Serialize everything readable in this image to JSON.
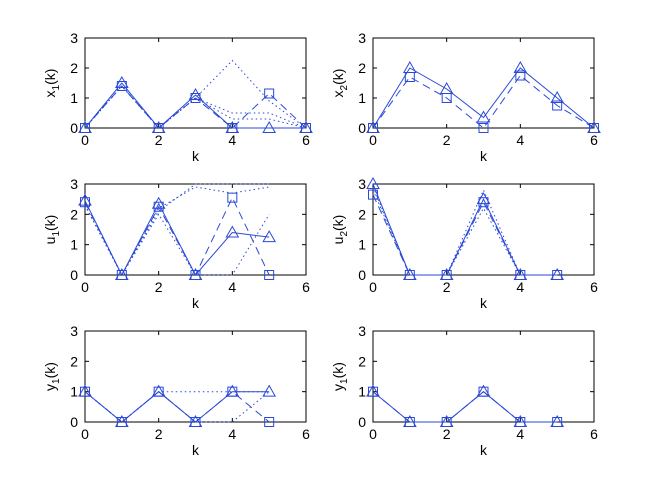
{
  "series_color": "#2a49d8",
  "chart_data": [
    {
      "type": "line",
      "xlabel": "k",
      "ylabel_main": "x",
      "ylabel_sub": "1",
      "ylabel_tail": "(k)",
      "xlim": [
        0,
        6
      ],
      "ylim": [
        0,
        3
      ],
      "xticks": [
        "0",
        "2",
        "4",
        "6"
      ],
      "yticks": [
        "0",
        "1",
        "2",
        "3"
      ],
      "series": [
        {
          "style": "solid",
          "marker": "triangle",
          "x": [
            0,
            1,
            2,
            3,
            4,
            5,
            6
          ],
          "y": [
            0,
            1.5,
            0,
            1.1,
            0,
            0,
            0
          ]
        },
        {
          "style": "dashed",
          "marker": "square",
          "x": [
            0,
            1,
            2,
            3,
            4,
            5,
            6
          ],
          "y": [
            0,
            1.4,
            0,
            1.0,
            0,
            1.15,
            0
          ]
        },
        {
          "style": "dotted",
          "marker": "none",
          "x": [
            0,
            1,
            2,
            3,
            4,
            5,
            6
          ],
          "y": [
            0,
            1.4,
            0,
            1.0,
            2.25,
            0.9,
            0
          ]
        },
        {
          "style": "dotted",
          "marker": "none",
          "x": [
            0,
            1,
            2,
            3,
            4,
            5,
            6
          ],
          "y": [
            0,
            1.4,
            0,
            1.0,
            0.5,
            0.5,
            0
          ]
        },
        {
          "style": "dotted",
          "marker": "none",
          "x": [
            0,
            1,
            2,
            3,
            4,
            5,
            6
          ],
          "y": [
            0,
            1.4,
            0,
            1.0,
            0.3,
            0.3,
            0
          ]
        }
      ]
    },
    {
      "type": "line",
      "xlabel": "k",
      "ylabel_main": "x",
      "ylabel_sub": "2",
      "ylabel_tail": "(k)",
      "xlim": [
        0,
        6
      ],
      "ylim": [
        0,
        3
      ],
      "xticks": [
        "0",
        "2",
        "4",
        "6"
      ],
      "yticks": [
        "0",
        "1",
        "2",
        "3"
      ],
      "series": [
        {
          "style": "solid",
          "marker": "triangle",
          "x": [
            0,
            1,
            2,
            3,
            4,
            5,
            6
          ],
          "y": [
            0,
            2.0,
            1.3,
            0.35,
            2.0,
            1.0,
            0
          ]
        },
        {
          "style": "dashed",
          "marker": "square",
          "x": [
            0,
            1,
            2,
            3,
            4,
            5,
            6
          ],
          "y": [
            0,
            1.7,
            1.0,
            0,
            1.75,
            0.75,
            0
          ]
        }
      ]
    },
    {
      "type": "line",
      "xlabel": "k",
      "ylabel_main": "u",
      "ylabel_sub": "1",
      "ylabel_tail": "(k)",
      "xlim": [
        0,
        6
      ],
      "ylim": [
        0,
        3
      ],
      "xticks": [
        "0",
        "2",
        "4",
        "6"
      ],
      "yticks": [
        "0",
        "1",
        "2",
        "3"
      ],
      "series": [
        {
          "style": "solid",
          "marker": "triangle",
          "x": [
            0,
            1,
            2,
            3,
            4,
            5
          ],
          "y": [
            2.45,
            0,
            2.35,
            0,
            1.4,
            1.25
          ]
        },
        {
          "style": "dashed",
          "marker": "square",
          "x": [
            0,
            1,
            2,
            3,
            4,
            5
          ],
          "y": [
            2.4,
            0,
            2.25,
            0,
            2.55,
            0
          ]
        },
        {
          "style": "dotted",
          "marker": "none",
          "x": [
            0,
            1,
            2,
            3,
            4,
            5
          ],
          "y": [
            2.3,
            0,
            2.1,
            3.0,
            3.0,
            3.0
          ]
        },
        {
          "style": "dotted",
          "marker": "none",
          "x": [
            0,
            1,
            2,
            3,
            4,
            5
          ],
          "y": [
            2.3,
            0,
            2.0,
            0,
            0,
            2.0
          ]
        },
        {
          "style": "dotted",
          "marker": "none",
          "x": [
            0,
            1,
            2,
            3,
            4,
            5
          ],
          "y": [
            2.3,
            0,
            2.2,
            2.9,
            2.7,
            2.9
          ]
        }
      ]
    },
    {
      "type": "line",
      "xlabel": "k",
      "ylabel_main": "u",
      "ylabel_sub": "2",
      "ylabel_tail": "(k)",
      "xlim": [
        0,
        6
      ],
      "ylim": [
        0,
        3
      ],
      "xticks": [
        "0",
        "2",
        "4",
        "6"
      ],
      "yticks": [
        "0",
        "1",
        "2",
        "3"
      ],
      "series": [
        {
          "style": "solid",
          "marker": "triangle",
          "x": [
            0,
            1,
            2,
            3,
            4,
            5
          ],
          "y": [
            3.0,
            0,
            0,
            2.5,
            0,
            0
          ]
        },
        {
          "style": "dashed",
          "marker": "square",
          "x": [
            0,
            1,
            2,
            3,
            4,
            5
          ],
          "y": [
            2.65,
            0,
            0,
            2.4,
            0,
            0
          ]
        },
        {
          "style": "dotted",
          "marker": "none",
          "x": [
            0,
            1,
            2,
            3,
            4,
            5
          ],
          "y": [
            2.9,
            0,
            0,
            2.8,
            0,
            0
          ]
        },
        {
          "style": "dotted",
          "marker": "none",
          "x": [
            0,
            1,
            2,
            3,
            4,
            5
          ],
          "y": [
            2.8,
            0,
            0,
            2.2,
            0,
            0
          ]
        }
      ]
    },
    {
      "type": "line",
      "xlabel": "k",
      "ylabel_main": "y",
      "ylabel_sub": "1",
      "ylabel_tail": "(k)",
      "xlim": [
        0,
        6
      ],
      "ylim": [
        0,
        3
      ],
      "xticks": [
        "0",
        "2",
        "4",
        "6"
      ],
      "yticks": [
        "0",
        "1",
        "2",
        "3"
      ],
      "series": [
        {
          "style": "solid",
          "marker": "triangle",
          "x": [
            0,
            1,
            2,
            3,
            4,
            5
          ],
          "y": [
            1,
            0,
            1,
            0,
            1,
            1
          ]
        },
        {
          "style": "dashed",
          "marker": "square",
          "x": [
            0,
            1,
            2,
            3,
            4,
            5
          ],
          "y": [
            1,
            0,
            1,
            0,
            1,
            0
          ]
        },
        {
          "style": "dotted",
          "marker": "none",
          "x": [
            0,
            1,
            2,
            3,
            4,
            5
          ],
          "y": [
            1,
            0,
            1,
            1,
            1,
            1
          ]
        },
        {
          "style": "dotted",
          "marker": "none",
          "x": [
            0,
            1,
            2,
            3,
            4,
            5
          ],
          "y": [
            1,
            0,
            1,
            0,
            0,
            1
          ]
        }
      ]
    },
    {
      "type": "line",
      "xlabel": "k",
      "ylabel_main": "y",
      "ylabel_sub": "1",
      "ylabel_tail": "(k)",
      "xlim": [
        0,
        6
      ],
      "ylim": [
        0,
        3
      ],
      "xticks": [
        "0",
        "2",
        "4",
        "6"
      ],
      "yticks": [
        "0",
        "1",
        "2",
        "3"
      ],
      "series": [
        {
          "style": "solid",
          "marker": "triangle",
          "x": [
            0,
            1,
            2,
            3,
            4,
            5
          ],
          "y": [
            1,
            0,
            0,
            1,
            0,
            0
          ]
        },
        {
          "style": "dashed",
          "marker": "square",
          "x": [
            0,
            1,
            2,
            3,
            4,
            5
          ],
          "y": [
            1,
            0,
            0,
            1,
            0,
            0
          ]
        }
      ]
    }
  ]
}
